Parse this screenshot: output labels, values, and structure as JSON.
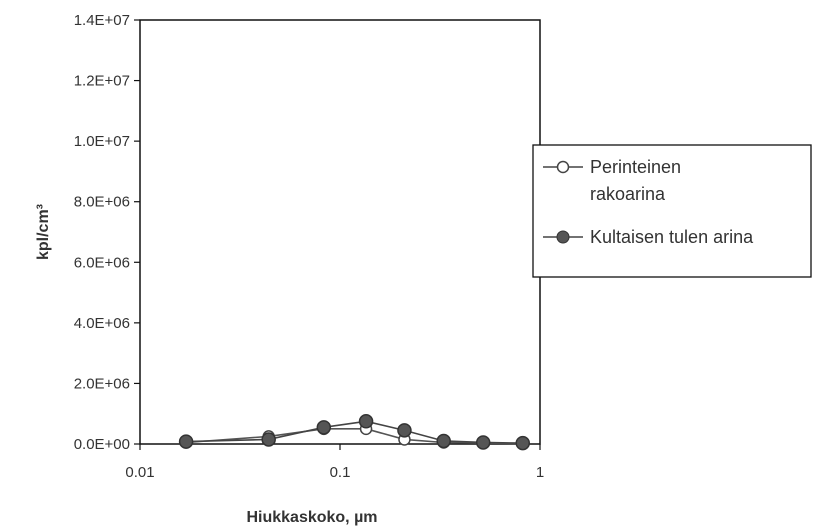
{
  "chart_data": {
    "type": "line",
    "title": "",
    "xlabel": "Hiukkaskoko, µm",
    "ylabel": "kpl/cm³",
    "x_scale": "log",
    "xlim": [
      0.01,
      1
    ],
    "ylim": [
      0,
      14000000
    ],
    "x_ticks": [
      0.01,
      0.1,
      1
    ],
    "x_tick_labels": [
      "0.01",
      "0.1",
      "1"
    ],
    "y_ticks": [
      0,
      2000000,
      4000000,
      6000000,
      8000000,
      10000000,
      12000000,
      14000000
    ],
    "y_tick_labels": [
      "0.0E+00",
      "2.0E+06",
      "4.0E+06",
      "6.0E+06",
      "8.0E+06",
      "1.0E+07",
      "1.2E+07",
      "1.4E+07"
    ],
    "grid": false,
    "legend_position": "right",
    "series": [
      {
        "name": "Perinteinen rakoarina",
        "marker": "open-circle",
        "x": [
          0.017,
          0.044,
          0.083,
          0.135,
          0.21,
          0.33,
          0.52,
          0.82
        ],
        "y": [
          50000,
          250000,
          500000,
          500000,
          150000,
          50000,
          30000,
          20000
        ]
      },
      {
        "name": "Kultaisen tulen arina",
        "marker": "filled-circle",
        "x": [
          0.017,
          0.044,
          0.083,
          0.135,
          0.21,
          0.33,
          0.52,
          0.82
        ],
        "y": [
          80000,
          150000,
          550000,
          750000,
          450000,
          100000,
          50000,
          30000
        ]
      }
    ],
    "legend": {
      "items": [
        {
          "lines": [
            "Perinteinen",
            "rakoarina"
          ]
        },
        {
          "lines": [
            "Kultaisen tulen arina"
          ]
        }
      ]
    }
  }
}
